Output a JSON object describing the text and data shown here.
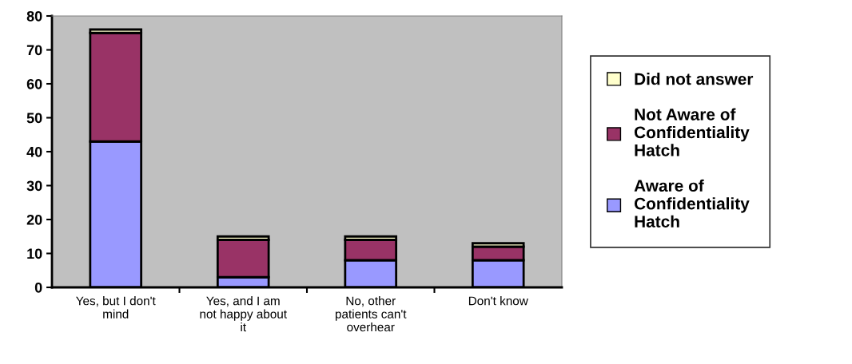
{
  "chart_data": {
    "type": "bar",
    "stacked": true,
    "categories": [
      "Yes, but I don't mind",
      "Yes, and I am not happy about it",
      "No, other patients can't overhear",
      "Don't know"
    ],
    "series": [
      {
        "name": "Aware of Confidentiality Hatch",
        "color": "#9999ff",
        "values": [
          43,
          3,
          8,
          8
        ]
      },
      {
        "name": "Not Aware of Confidentiality Hatch",
        "color": "#993366",
        "values": [
          32,
          11,
          6,
          4
        ]
      },
      {
        "name": "Did not answer",
        "color": "#ffffcc",
        "values": [
          1,
          1,
          1,
          1
        ]
      }
    ],
    "ylim": [
      0,
      80
    ],
    "yticks": [
      0,
      10,
      20,
      30,
      40,
      50,
      60,
      70,
      80
    ],
    "grid": false,
    "legend": "right"
  }
}
